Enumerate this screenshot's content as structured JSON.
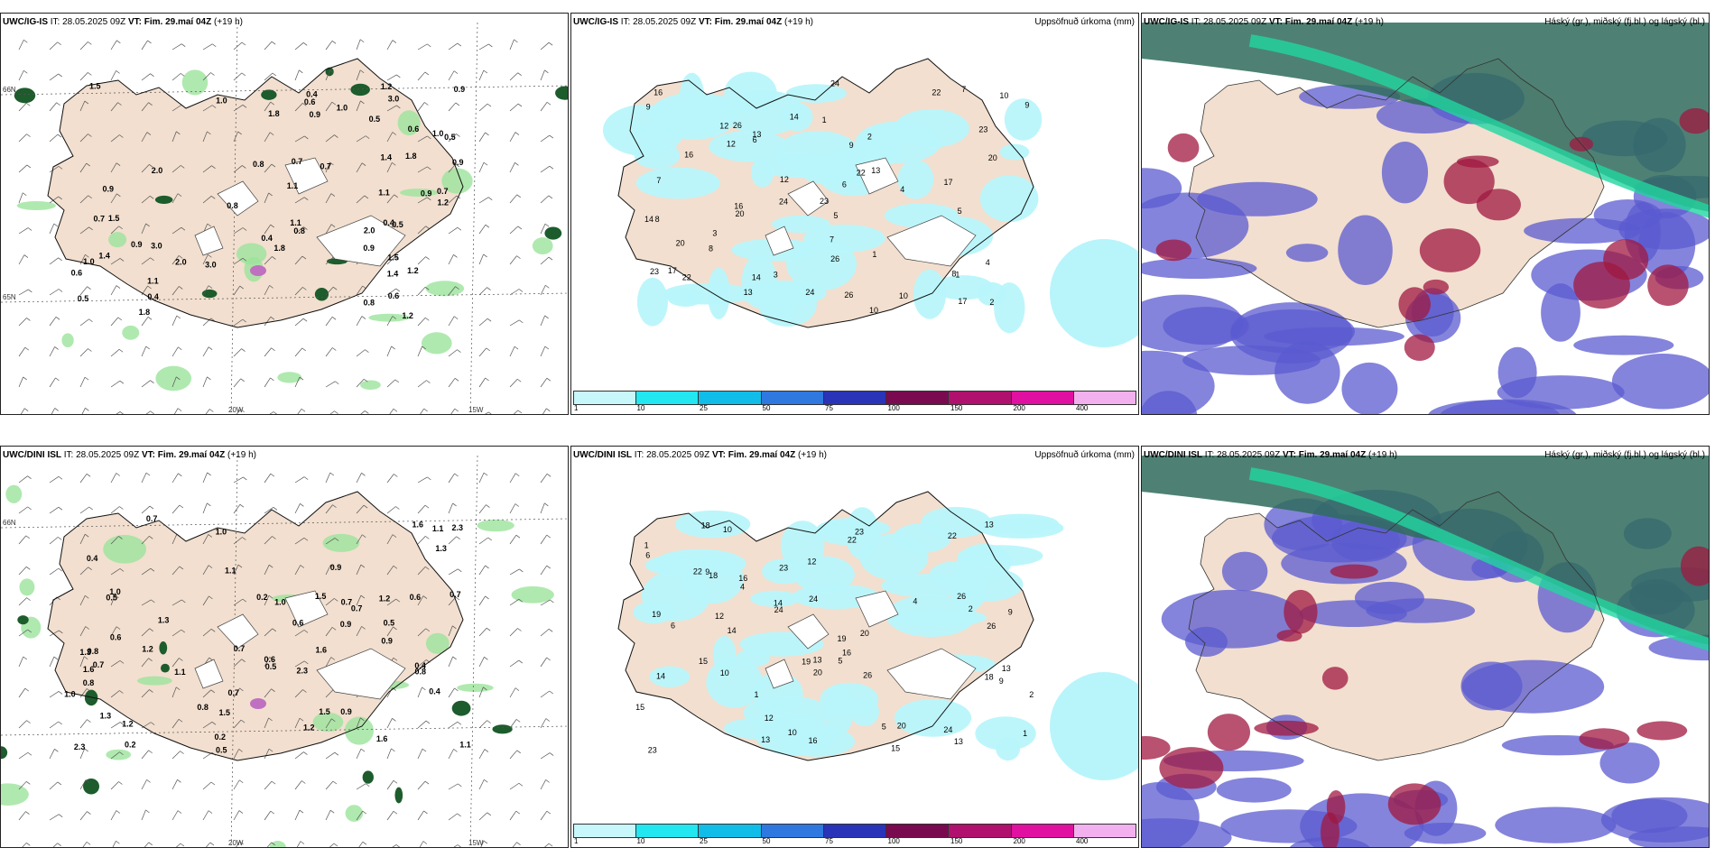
{
  "panels": [
    {
      "model": "UWC/IG-IS",
      "it": "IT: 28.05.2025 09Z",
      "vt": "VT: Fim. 29.maí 04Z",
      "lead": "(+19 h)",
      "right": ""
    },
    {
      "model": "UWC/IG-IS",
      "it": "IT: 28.05.2025 09Z",
      "vt": "VT: Fim. 29.maí 04Z",
      "lead": "(+19 h)",
      "right": "Uppsöfnuð úrkoma (mm)"
    },
    {
      "model": "UWC/IG-IS",
      "it": "IT: 28.05.2025 09Z",
      "vt": "VT: Fim. 29.maí 04Z",
      "lead": "(+19 h)",
      "right": "Háský (gr.), miðský (fj.bl.) og lágský (bl.)"
    },
    {
      "model": "UWC/DINI ISL",
      "it": "IT: 28.05.2025 09Z",
      "vt": "VT: Fim. 29.maí 04Z",
      "lead": "(+19 h)",
      "right": ""
    },
    {
      "model": "UWC/DINI ISL",
      "it": "IT: 28.05.2025 09Z",
      "vt": "VT: Fim. 29.maí 04Z",
      "lead": "(+19 h)",
      "right": "Uppsöfnuð úrkoma (mm)"
    },
    {
      "model": "UWC/DINI ISL",
      "it": "IT: 28.05.2025 09Z",
      "vt": "VT: Fim. 29.maí 04Z",
      "lead": "(+19 h)",
      "right": "Háský (gr.), miðský (fj.bl.) og lágský (bl.)"
    }
  ],
  "axes": {
    "lat": "66N",
    "lat2": "65N",
    "lon1": "20W",
    "lon2": "15W"
  },
  "legend": {
    "colors": [
      "#c8f7fb",
      "#22e6f0",
      "#10bde8",
      "#2f78e0",
      "#2a34b8",
      "#7a0a50",
      "#b0106e",
      "#e010a0",
      "#f2b0ee"
    ],
    "ticks": [
      "1",
      "10",
      "25",
      "50",
      "75",
      "100",
      "150",
      "200",
      "400"
    ]
  },
  "colors": {
    "land": "#f2dfcf",
    "coast": "#000000",
    "precip": "#b8f5fb",
    "cloud_low": "#5b5bd0",
    "cloud_mid": "#a01840",
    "cloud_high": "#22d6a0"
  },
  "precip_values_top": [
    "1",
    "9",
    "8",
    "7",
    "12",
    "10",
    "13",
    "14",
    "24",
    "26",
    "20",
    "23",
    "17",
    "16",
    "22",
    "6",
    "3",
    "2",
    "5",
    "4"
  ],
  "precip_values_bottom": [
    "1",
    "9",
    "13",
    "19",
    "15",
    "20",
    "23",
    "16",
    "14",
    "18",
    "26",
    "24",
    "10",
    "12",
    "22",
    "13",
    "6",
    "2",
    "4",
    "5"
  ],
  "wind_values_top": [
    "1.0",
    "0.9",
    "0.6",
    "0.8",
    "1.8",
    "0.7",
    "1.1",
    "0.5",
    "1.2",
    "0.4",
    "2.0",
    "1.4",
    "1.5",
    "3.0",
    "0.9"
  ],
  "wind_values_bottom": [
    "1.1",
    "0.7",
    "1.0",
    "0.5",
    "1.6",
    "0.9",
    "0.6",
    "1.3",
    "0.8",
    "1.2",
    "0.7",
    "1.5",
    "0.2",
    "2.3",
    "0.4"
  ]
}
